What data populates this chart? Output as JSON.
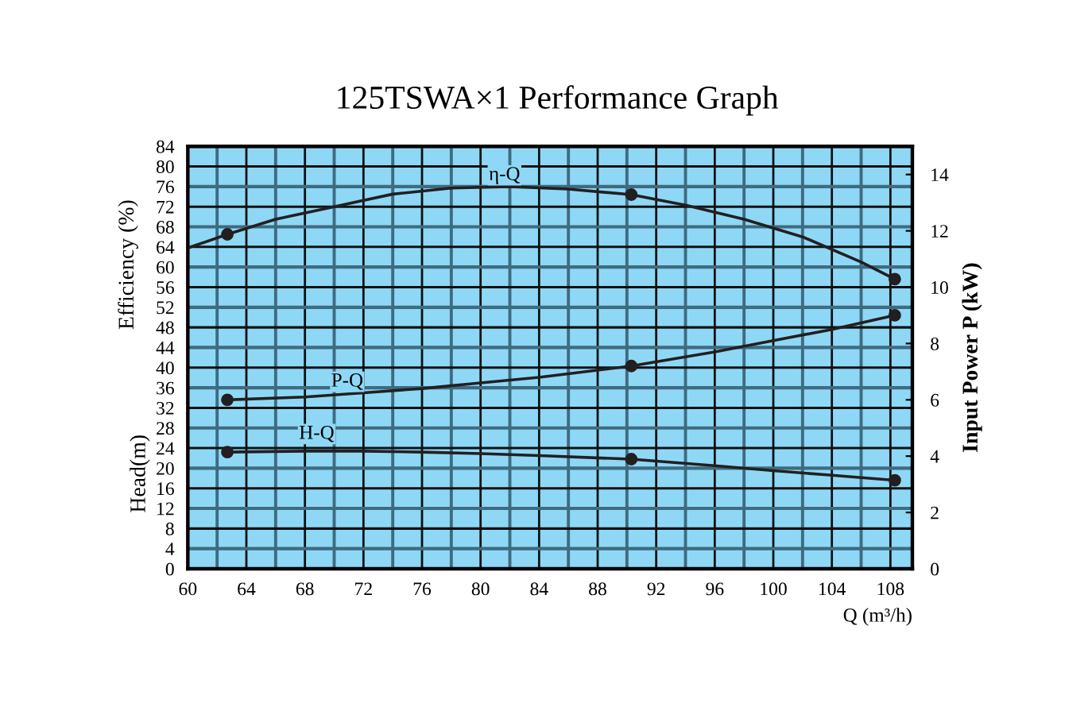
{
  "chart_data": {
    "type": "line",
    "title": "125TSWA×1 Performance Graph",
    "xlabel": "Q (m³/h)",
    "ylabel": "Efficiency (%)",
    "y2label": "Input Power P (kW)",
    "xlim": [
      60,
      109.5
    ],
    "xticks": [
      60,
      64,
      68,
      72,
      76,
      80,
      84,
      88,
      92,
      96,
      100,
      104,
      108
    ],
    "ylim": [
      0,
      84
    ],
    "yticks": [
      0,
      4,
      8,
      12,
      16,
      20,
      24,
      28,
      32,
      36,
      40,
      44,
      48,
      52,
      56,
      60,
      64,
      68,
      72,
      76,
      80,
      84
    ],
    "y2lim": [
      0,
      15
    ],
    "y2ticks": [
      0,
      2,
      4,
      6,
      8,
      10,
      12,
      14
    ],
    "grid": true,
    "legend": false,
    "line_style": "solid",
    "series": [
      {
        "color": "#231f20",
        "marker": "none",
        "x": [
          60,
          62.7,
          66,
          70,
          74,
          78,
          82,
          86,
          90.3,
          94,
          98,
          102,
          106,
          108.3
        ],
        "values": [
          63.8,
          66.5,
          69.5,
          72,
          74.5,
          75.7,
          76,
          75.5,
          74.4,
          72.3,
          69.5,
          66,
          61,
          57.6
        ]
      },
      {
        "type": "scatter",
        "color": "#231f20",
        "marker": "circle",
        "x": [
          62.7,
          90.3,
          108.3
        ],
        "values": [
          66.5,
          74.4,
          57.6
        ]
      },
      {
        "color": "#231f20",
        "marker": "none",
        "axis": "y2",
        "x": [
          62.7,
          68,
          72,
          76,
          80,
          84,
          90.3,
          96,
          100,
          104,
          108.3
        ],
        "values": [
          6.0,
          6.1,
          6.25,
          6.4,
          6.6,
          6.8,
          7.2,
          7.7,
          8.1,
          8.5,
          9.0
        ]
      },
      {
        "type": "scatter",
        "color": "#231f20",
        "marker": "circle",
        "axis": "y2",
        "x": [
          62.7,
          90.3,
          108.3
        ],
        "values": [
          6.0,
          7.2,
          9.0
        ]
      },
      {
        "color": "#231f20",
        "marker": "none",
        "x": [
          62.7,
          68,
          72,
          76,
          80,
          84,
          90.3,
          96,
          100,
          104,
          108.3
        ],
        "values": [
          23.2,
          23.4,
          23.4,
          23.2,
          22.9,
          22.5,
          21.8,
          20.5,
          19.5,
          18.6,
          17.6
        ]
      },
      {
        "type": "scatter",
        "color": "#231f20",
        "marker": "circle",
        "x": [
          62.7,
          90.3,
          108.3
        ],
        "values": [
          23.2,
          21.8,
          17.6
        ]
      }
    ],
    "annotations": [
      "η-Q",
      "P-Q",
      "H-Q",
      "Head(m)"
    ]
  }
}
